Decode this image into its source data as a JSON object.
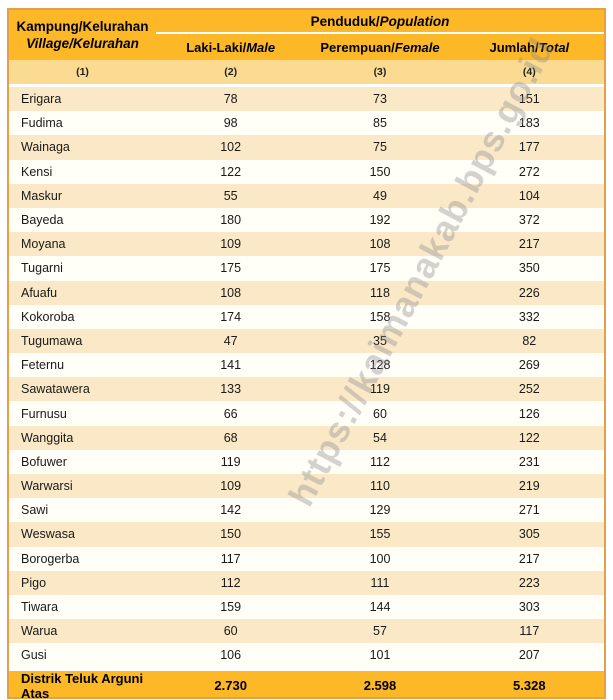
{
  "colors": {
    "header_gold": "#FCB827",
    "column_number_band": "#FBDB92",
    "row_peach": "#FBE8C7",
    "row_cream": "#FFFEF7",
    "outer_border_orange": "#E2A04B"
  },
  "watermark": {
    "text": "https://kaimanakab.bps.go.id"
  },
  "table": {
    "header": {
      "col1": {
        "line1": "Kampung/Kelurahan",
        "line2": "Village/Kelurahan"
      },
      "group": {
        "title_id": "Penduduk/",
        "title_en": "Population"
      },
      "columns": [
        {
          "label_id": "Laki-Laki/",
          "label_en": "Male"
        },
        {
          "label_id": "Perempuan/",
          "label_en": "Female"
        },
        {
          "label_id": "Jumlah/",
          "label_en": "Total"
        }
      ],
      "col_numbers": [
        "(1)",
        "(2)",
        "(3)",
        "(4)"
      ]
    },
    "rows": [
      {
        "name": "Erigara",
        "male": "78",
        "female": "73",
        "total": "151"
      },
      {
        "name": "Fudima",
        "male": "98",
        "female": "85",
        "total": "183"
      },
      {
        "name": "Wainaga",
        "male": "102",
        "female": "75",
        "total": "177"
      },
      {
        "name": "Kensi",
        "male": "122",
        "female": "150",
        "total": "272"
      },
      {
        "name": "Maskur",
        "male": "55",
        "female": "49",
        "total": "104"
      },
      {
        "name": "Bayeda",
        "male": "180",
        "female": "192",
        "total": "372"
      },
      {
        "name": "Moyana",
        "male": "109",
        "female": "108",
        "total": "217"
      },
      {
        "name": "Tugarni",
        "male": "175",
        "female": "175",
        "total": "350"
      },
      {
        "name": "Afuafu",
        "male": "108",
        "female": "118",
        "total": "226"
      },
      {
        "name": "Kokoroba",
        "male": "174",
        "female": "158",
        "total": "332"
      },
      {
        "name": "Tugumawa",
        "male": "47",
        "female": "35",
        "total": "82"
      },
      {
        "name": "Feternu",
        "male": "141",
        "female": "128",
        "total": "269"
      },
      {
        "name": "Sawatawera",
        "male": "133",
        "female": "119",
        "total": "252"
      },
      {
        "name": "Furnusu",
        "male": "66",
        "female": "60",
        "total": "126"
      },
      {
        "name": "Wanggita",
        "male": "68",
        "female": "54",
        "total": "122"
      },
      {
        "name": "Bofuwer",
        "male": "119",
        "female": "112",
        "total": "231"
      },
      {
        "name": "Warwarsi",
        "male": "109",
        "female": "110",
        "total": "219"
      },
      {
        "name": "Sawi",
        "male": "142",
        "female": "129",
        "total": "271"
      },
      {
        "name": "Weswasa",
        "male": "150",
        "female": "155",
        "total": "305"
      },
      {
        "name": "Borogerba",
        "male": "117",
        "female": "100",
        "total": "217"
      },
      {
        "name": "Pigo",
        "male": "112",
        "female": "111",
        "total": "223"
      },
      {
        "name": "Tiwara",
        "male": "159",
        "female": "144",
        "total": "303"
      },
      {
        "name": "Warua",
        "male": "60",
        "female": "57",
        "total": "117"
      },
      {
        "name": "Gusi",
        "male": "106",
        "female": "101",
        "total": "207"
      }
    ],
    "footer": {
      "label": "Distrik Teluk Arguni Atas",
      "male": "2.730",
      "female": "2.598",
      "total": "5.328"
    }
  }
}
